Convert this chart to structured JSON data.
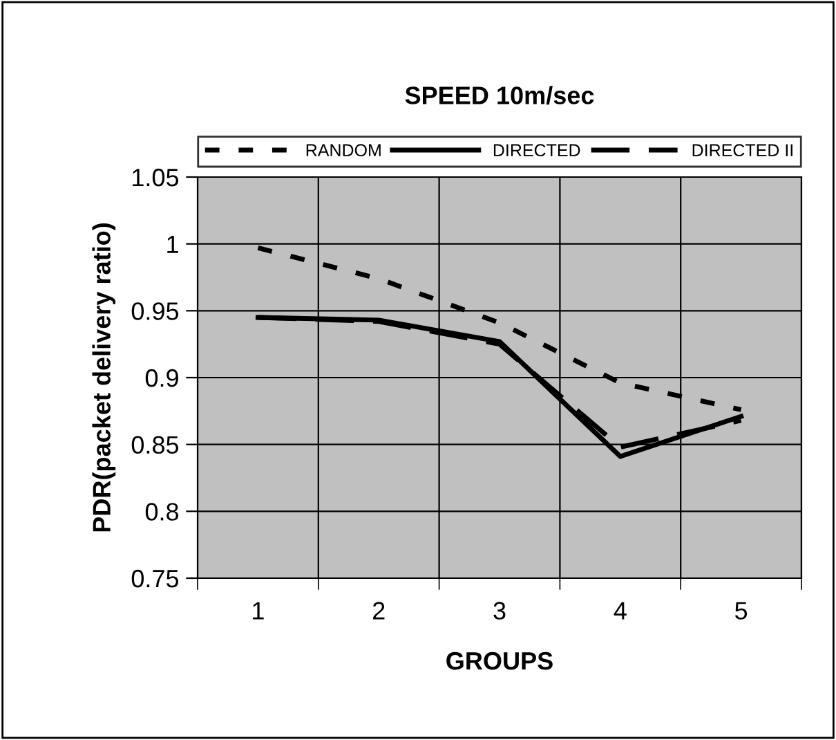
{
  "chart_data": {
    "type": "line",
    "title": "SPEED 10m/sec",
    "xlabel": "GROUPS",
    "ylabel": "PDR(packet delivery ratio)",
    "categories": [
      "1",
      "2",
      "3",
      "4",
      "5"
    ],
    "series": [
      {
        "name": "RANDOM",
        "color": "#000000",
        "line_style": "dashed",
        "values": [
          0.997,
          0.974,
          0.941,
          0.896,
          0.876
        ]
      },
      {
        "name": "DIRECTED",
        "color": "#000000",
        "line_style": "solid",
        "values": [
          0.945,
          0.943,
          0.927,
          0.841,
          0.871
        ]
      },
      {
        "name": "DIRECTED II",
        "color": "#000000",
        "line_style": "longdash",
        "values": [
          0.945,
          0.942,
          0.925,
          0.848,
          0.868
        ]
      }
    ],
    "ylim": [
      0.75,
      1.05
    ],
    "yticks": [
      0.75,
      0.8,
      {
        "value": 0.85,
        "label": "0.85"
      },
      0.9,
      0.95,
      1,
      1.05
    ],
    "grid": true,
    "legend": "top",
    "marker": "none"
  }
}
